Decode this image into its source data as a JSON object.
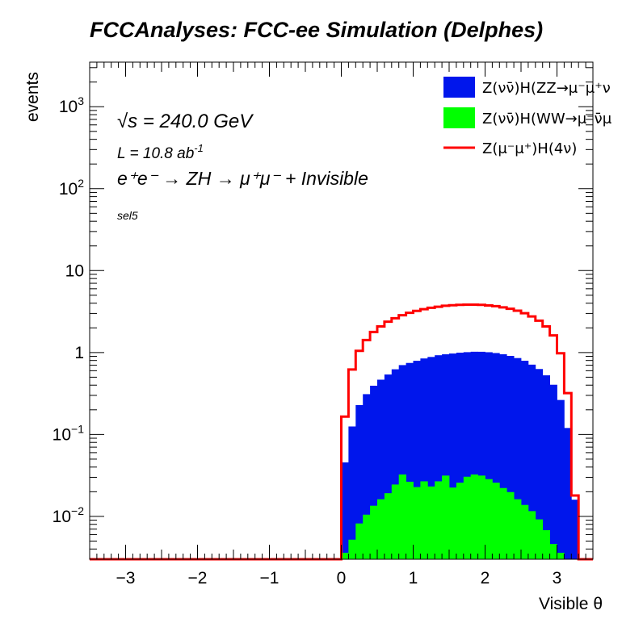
{
  "chart_data": {
    "type": "histogram",
    "title": "FCCAnalyses: FCC-ee Simulation (Delphes)",
    "xlabel": "Visible θ",
    "ylabel": "events",
    "xlim": [
      -3.5,
      3.5
    ],
    "ylim": [
      0.003,
      3500
    ],
    "yscale": "log",
    "x_ticks": [
      "−3",
      "−2",
      "−1",
      "0",
      "1",
      "2",
      "3"
    ],
    "y_ticks": [
      {
        "value": 0.01,
        "base": "10",
        "exp": "−2"
      },
      {
        "value": 0.1,
        "base": "10",
        "exp": "−1"
      },
      {
        "value": 1,
        "base": "1",
        "exp": ""
      },
      {
        "value": 10,
        "base": "10",
        "exp": ""
      },
      {
        "value": 100,
        "base": "10",
        "exp": "2"
      },
      {
        "value": 1000,
        "base": "10",
        "exp": "3"
      }
    ],
    "bin_width": 0.1,
    "bin_start": 0.0,
    "annotations": {
      "energy": "√s = 240.0 GeV",
      "lumi": "L = 10.8 ab",
      "lumi_exp": "-1",
      "process": "e⁺e⁻ → ZH → μ⁺μ⁻ + Invisible",
      "selection": "sel5"
    },
    "legend_position": "top-right",
    "series": [
      {
        "name": "Z(νν̄)H(ZZ→μ⁻μ⁺ν¯ν)",
        "legend_text": "Z(νν̄)H(ZZ→μ⁻μ⁺ν",
        "style": "fill",
        "color": "#0016ec",
        "values": [
          0.042,
          0.12,
          0.22,
          0.3,
          0.38,
          0.45,
          0.52,
          0.6,
          0.67,
          0.72,
          0.77,
          0.82,
          0.86,
          0.9,
          0.92,
          0.95,
          0.97,
          0.98,
          0.99,
          0.99,
          0.98,
          0.96,
          0.93,
          0.89,
          0.84,
          0.78,
          0.7,
          0.62,
          0.52,
          0.4,
          0.26,
          0.12,
          0.016
        ]
      },
      {
        "name": "Z(νν̄)H(WW→μ⁻ν¯μ⁺ν)",
        "legend_text": "Z(νν̄)H(WW→μ⁻ν̄μ",
        "style": "fill",
        "color": "#00ff00",
        "values": [
          0.0036,
          0.0052,
          0.0082,
          0.0105,
          0.0135,
          0.0162,
          0.0192,
          0.0245,
          0.0325,
          0.0265,
          0.0228,
          0.0268,
          0.0232,
          0.0268,
          0.0315,
          0.0225,
          0.0258,
          0.0305,
          0.0325,
          0.0315,
          0.0285,
          0.0258,
          0.0222,
          0.0198,
          0.0162,
          0.0138,
          0.0116,
          0.0092,
          0.0068,
          0.0046,
          0.0036,
          0.0,
          0.0
        ]
      },
      {
        "name": "Z(μ⁻μ⁺)H(4ν)",
        "legend_text": "Z(μ⁻μ⁺)H(4ν)",
        "style": "line",
        "color": "#ff0000",
        "values": [
          0.165,
          0.62,
          1.05,
          1.42,
          1.78,
          2.08,
          2.38,
          2.62,
          2.85,
          3.05,
          3.22,
          3.38,
          3.52,
          3.62,
          3.72,
          3.78,
          3.82,
          3.84,
          3.84,
          3.82,
          3.76,
          3.68,
          3.56,
          3.42,
          3.24,
          3.02,
          2.76,
          2.45,
          2.08,
          1.62,
          0.98,
          0.32,
          0.018
        ]
      }
    ]
  }
}
